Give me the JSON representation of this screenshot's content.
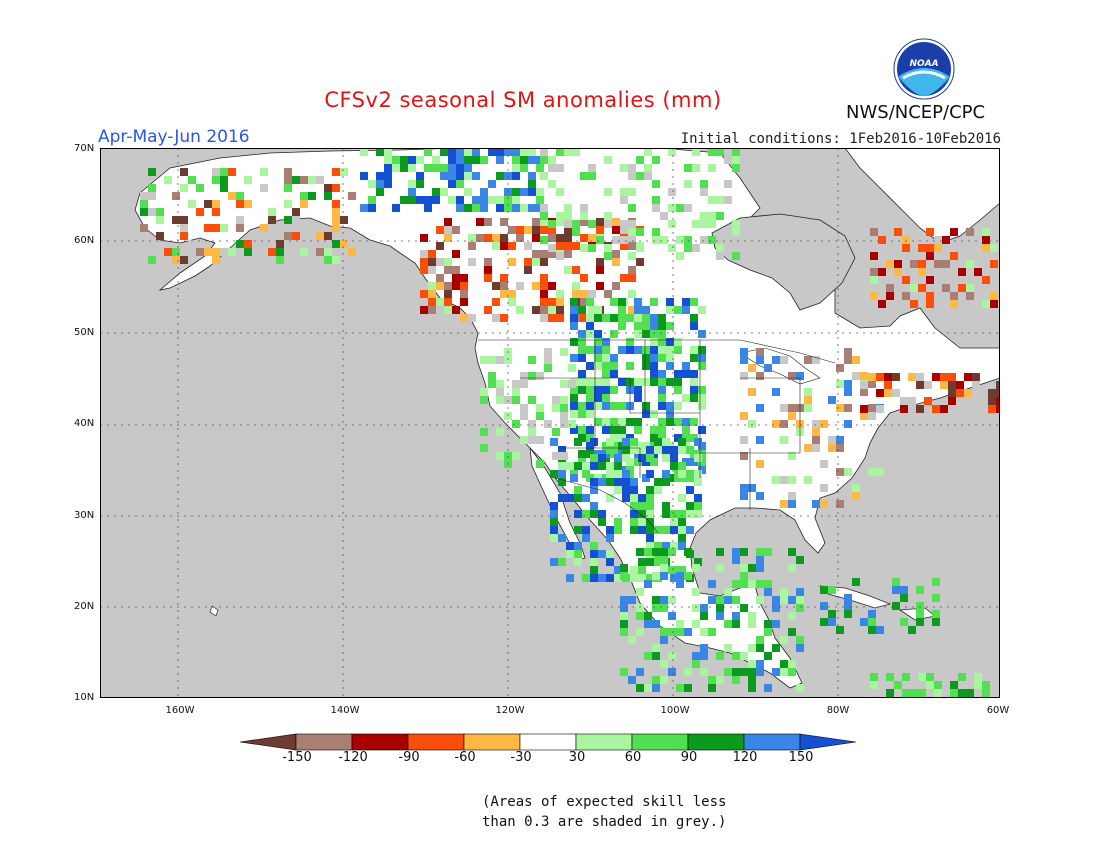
{
  "title": "CFSv2 seasonal SM anomalies (mm)",
  "period": "Apr-May-Jun 2016",
  "initial_conditions": "Initial conditions: 1Feb2016-10Feb2016",
  "agency": "NWS/NCEP/CPC",
  "logo_text": "NOAA",
  "lat_labels": [
    "70N",
    "60N",
    "50N",
    "40N",
    "30N",
    "20N",
    "10N"
  ],
  "lon_labels": [
    "160W",
    "140W",
    "120W",
    "100W",
    "80W",
    "60W"
  ],
  "colorbar": {
    "labels": [
      "-150",
      "-120",
      "-90",
      "-60",
      "-30",
      "30",
      "60",
      "90",
      "120",
      "150"
    ],
    "colors": [
      "#6e3b30",
      "#a97e74",
      "#a80000",
      "#fa4e0a",
      "#ffb844",
      "#ffffff",
      "#aaf5a0",
      "#52e052",
      "#0b9a1e",
      "#3a86e6",
      "#1450d2"
    ]
  },
  "note_lines": [
    "(Areas of expected skill less",
    "than 0.3 are shaded in grey.)"
  ],
  "colors": {
    "ocean": "#c8c8c8",
    "land": "#ffffff",
    "title": "#e11414",
    "period": "#2b55e6"
  }
}
